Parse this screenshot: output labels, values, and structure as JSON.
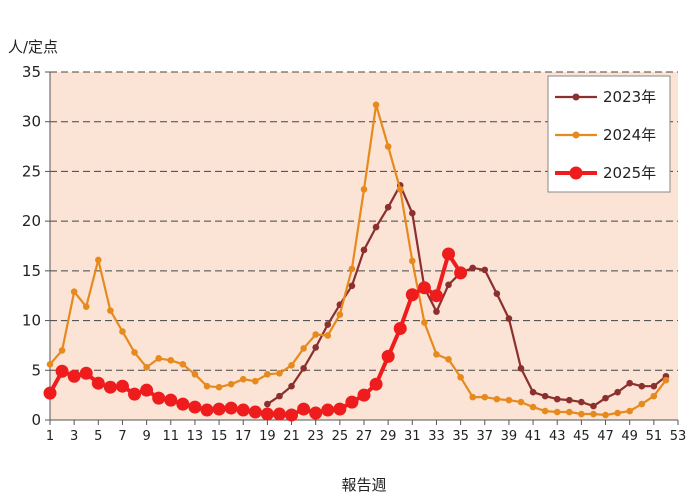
{
  "chart_data": {
    "type": "line",
    "title": "",
    "ylabel": "人/定点",
    "xlabel": "報告週",
    "ylim": [
      0,
      35
    ],
    "yticks": [
      0,
      5,
      10,
      15,
      20,
      25,
      30,
      35
    ],
    "xlim": [
      1,
      53
    ],
    "xticks": [
      1,
      3,
      5,
      7,
      9,
      11,
      13,
      15,
      17,
      19,
      21,
      23,
      25,
      27,
      29,
      31,
      33,
      35,
      37,
      39,
      41,
      43,
      45,
      47,
      49,
      51,
      53
    ],
    "grid": "horizontal-dashed",
    "legend_position": "top-right",
    "background_color": "#fbe4d5",
    "series": [
      {
        "name": "2023年",
        "color": "#8b2f2f",
        "x": [
          19,
          20,
          21,
          22,
          23,
          24,
          25,
          26,
          27,
          28,
          29,
          30,
          31,
          32,
          33,
          34,
          35,
          36,
          37,
          38,
          39,
          40,
          41,
          42,
          43,
          44,
          45,
          46,
          47,
          48,
          49,
          50,
          51,
          52
        ],
        "y": [
          1.6,
          2.4,
          3.4,
          5.2,
          7.3,
          9.6,
          11.6,
          13.5,
          17.1,
          19.4,
          21.4,
          23.6,
          20.8,
          13.3,
          10.9,
          13.6,
          14.8,
          15.3,
          15.1,
          12.7,
          10.2,
          5.2,
          2.8,
          2.4,
          2.1,
          2.0,
          1.8,
          1.4,
          2.2,
          2.8,
          3.7,
          3.4,
          3.4,
          4.4
        ]
      },
      {
        "name": "2024年",
        "color": "#e68a1e",
        "x": [
          1,
          2,
          3,
          4,
          5,
          6,
          7,
          8,
          9,
          10,
          11,
          12,
          13,
          14,
          15,
          16,
          17,
          18,
          19,
          20,
          21,
          22,
          23,
          24,
          25,
          26,
          27,
          28,
          29,
          30,
          31,
          32,
          33,
          34,
          35,
          36,
          37,
          38,
          39,
          40,
          41,
          42,
          43,
          44,
          45,
          46,
          47,
          48,
          49,
          50,
          51,
          52
        ],
        "y": [
          5.6,
          7.0,
          12.9,
          11.4,
          16.1,
          11.0,
          8.9,
          6.8,
          5.3,
          6.2,
          6.0,
          5.6,
          4.6,
          3.4,
          3.3,
          3.6,
          4.1,
          3.9,
          4.6,
          4.7,
          5.5,
          7.2,
          8.6,
          8.5,
          10.6,
          15.2,
          23.2,
          31.7,
          27.5,
          23.2,
          16.0,
          9.8,
          6.6,
          6.1,
          4.3,
          2.3,
          2.3,
          2.1,
          2.0,
          1.8,
          1.3,
          0.9,
          0.8,
          0.8,
          0.6,
          0.6,
          0.5,
          0.7,
          0.9,
          1.6,
          2.4,
          4.0
        ]
      },
      {
        "name": "2025年",
        "color": "#ee1c1c",
        "x": [
          1,
          2,
          3,
          4,
          5,
          6,
          7,
          8,
          9,
          10,
          11,
          12,
          13,
          14,
          15,
          16,
          17,
          18,
          19,
          20,
          21,
          22,
          23,
          24,
          25,
          26,
          27,
          28,
          29,
          30,
          31,
          32,
          33,
          34,
          35
        ],
        "y": [
          2.7,
          4.9,
          4.4,
          4.7,
          3.7,
          3.3,
          3.4,
          2.6,
          3.0,
          2.2,
          2.0,
          1.6,
          1.3,
          1.0,
          1.1,
          1.2,
          1.0,
          0.8,
          0.6,
          0.6,
          0.5,
          1.1,
          0.7,
          1.0,
          1.1,
          1.8,
          2.5,
          3.6,
          6.4,
          9.2,
          12.6,
          13.3,
          12.5,
          16.7,
          14.8
        ]
      }
    ]
  }
}
